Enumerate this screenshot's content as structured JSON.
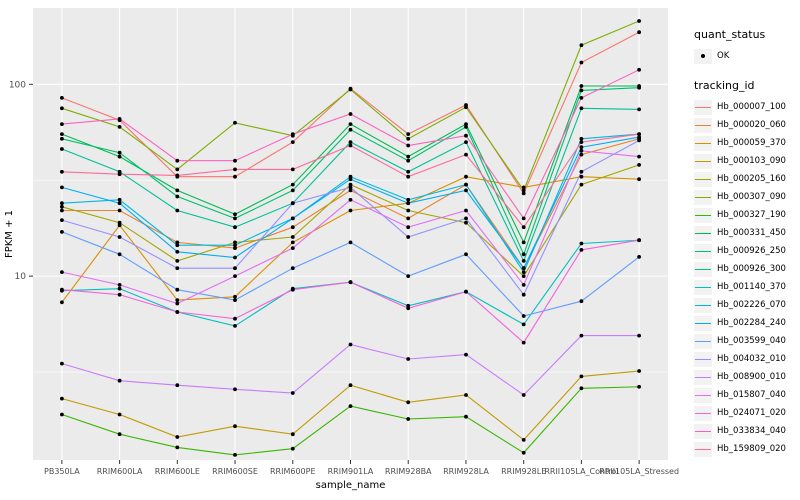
{
  "figure": {
    "y_axis": {
      "title": "FPKM + 1",
      "tick_labels": [
        "100",
        "10"
      ],
      "tick_values": [
        100,
        10
      ]
    },
    "x_axis": {
      "title": "sample_name"
    },
    "legend": {
      "quant_status_title": "quant_status",
      "quant_status_items": [
        {
          "label": "OK",
          "symbol": "point"
        }
      ],
      "tracking_id_title": "tracking_id"
    },
    "colors": {
      "panel_bg": "#EBEBEB",
      "grid": "#FFFFFF",
      "tick_text": "#4D4D4D",
      "axis_title_text": "#000000",
      "point": "#000000",
      "legend_key_bg": "#F2F2F2"
    }
  },
  "chart_data": {
    "type": "line",
    "title": "",
    "xlabel": "sample_name",
    "ylabel": "FPKM + 1",
    "y_scale": "log10",
    "ylim": [
      1.1,
      250
    ],
    "grid": true,
    "legend_position": "right",
    "point_marker": "black-dot",
    "x": [
      "PB350LA",
      "RRIM600LA",
      "RRIM600LE",
      "RRIM600SE",
      "RRIM600PE",
      "RRIM901LA",
      "RRIM928BA",
      "RRIM928LA",
      "RRIM928LE",
      "RRII105LA_Control",
      "RRII105LA_Stressed"
    ],
    "series": [
      {
        "name": "Hb_000007_100",
        "color": "#F8766D",
        "values": [
          85,
          65,
          33,
          33,
          50,
          95,
          55,
          78,
          27,
          130,
          187
        ]
      },
      {
        "name": "Hb_000020_060",
        "color": "#EA8331",
        "values": [
          22,
          22,
          15,
          14,
          18,
          28,
          20,
          30,
          11,
          43,
          52
        ]
      },
      {
        "name": "Hb_000059_370",
        "color": "#D89000",
        "values": [
          7.3,
          18.4,
          7.5,
          7.8,
          15,
          22,
          24,
          33,
          29,
          33,
          32
        ]
      },
      {
        "name": "Hb_000103_090",
        "color": "#C09B00",
        "values": [
          2.3,
          1.9,
          1.45,
          1.65,
          1.5,
          2.7,
          2.2,
          2.4,
          1.4,
          3.0,
          3.2
        ]
      },
      {
        "name": "Hb_000205_160",
        "color": "#A3A500",
        "values": [
          23,
          19,
          12,
          15,
          16,
          30,
          22,
          19,
          10,
          30,
          38
        ]
      },
      {
        "name": "Hb_000307_090",
        "color": "#7CAE00",
        "values": [
          75,
          60,
          36,
          63,
          54,
          94,
          52,
          76,
          28,
          160,
          214
        ]
      },
      {
        "name": "Hb_000327_190",
        "color": "#39B600",
        "values": [
          1.9,
          1.5,
          1.28,
          1.17,
          1.26,
          2.1,
          1.8,
          1.85,
          1.2,
          2.6,
          2.65
        ]
      },
      {
        "name": "Hb_000331_450",
        "color": "#00BB4E",
        "values": [
          55,
          42,
          28,
          21,
          30,
          62,
          42,
          62,
          15,
          98,
          98
        ]
      },
      {
        "name": "Hb_000926_250",
        "color": "#00BF74",
        "values": [
          52,
          44,
          26,
          20,
          28,
          58,
          40,
          60,
          13,
          93,
          96
        ]
      },
      {
        "name": "Hb_000926_300",
        "color": "#00C092",
        "values": [
          46,
          35,
          22,
          18,
          24,
          50,
          35,
          50,
          12,
          75,
          74
        ]
      },
      {
        "name": "Hb_001140_370",
        "color": "#00BFC0",
        "values": [
          8.4,
          8.6,
          6.5,
          5.5,
          8.6,
          9.3,
          7.0,
          8.3,
          5.6,
          14.8,
          15.4
        ]
      },
      {
        "name": "Hb_002226_070",
        "color": "#00B8E0",
        "values": [
          24,
          25,
          14.5,
          14.5,
          20,
          33,
          25,
          30,
          10.5,
          52,
          55
        ]
      },
      {
        "name": "Hb_002284_240",
        "color": "#00ACF5",
        "values": [
          29,
          24,
          13.4,
          12.5,
          20,
          32,
          24,
          28,
          11,
          47,
          53
        ]
      },
      {
        "name": "Hb_003599_040",
        "color": "#619CFF",
        "values": [
          17,
          13,
          8.5,
          7.5,
          11,
          15,
          10,
          13,
          6.2,
          7.4,
          12.6
        ]
      },
      {
        "name": "Hb_004032_010",
        "color": "#9590FF",
        "values": [
          19.6,
          16,
          11,
          11,
          24,
          29,
          16,
          20,
          8,
          35,
          51
        ]
      },
      {
        "name": "Hb_008900_010",
        "color": "#C77CFF",
        "values": [
          3.5,
          2.85,
          2.7,
          2.57,
          2.46,
          4.4,
          3.7,
          3.9,
          2.4,
          4.9,
          4.9
        ]
      },
      {
        "name": "Hb_015807_040",
        "color": "#E36EF6",
        "values": [
          10.5,
          9,
          7.2,
          10,
          14,
          25,
          18,
          22,
          9,
          45,
          42
        ]
      },
      {
        "name": "Hb_024071_020",
        "color": "#F563DD",
        "values": [
          8.5,
          8,
          6.5,
          6,
          8.5,
          9.3,
          6.8,
          8.3,
          4.5,
          13.7,
          15.4
        ]
      },
      {
        "name": "Hb_033834_040",
        "color": "#FD61BF",
        "values": [
          62,
          66,
          40,
          40,
          55,
          70,
          48,
          54,
          20,
          85,
          119
        ]
      },
      {
        "name": "Hb_159809_020",
        "color": "#FF6A98",
        "values": [
          35,
          34,
          33.5,
          36,
          36,
          48,
          33,
          43,
          18,
          50,
          55
        ]
      }
    ]
  }
}
